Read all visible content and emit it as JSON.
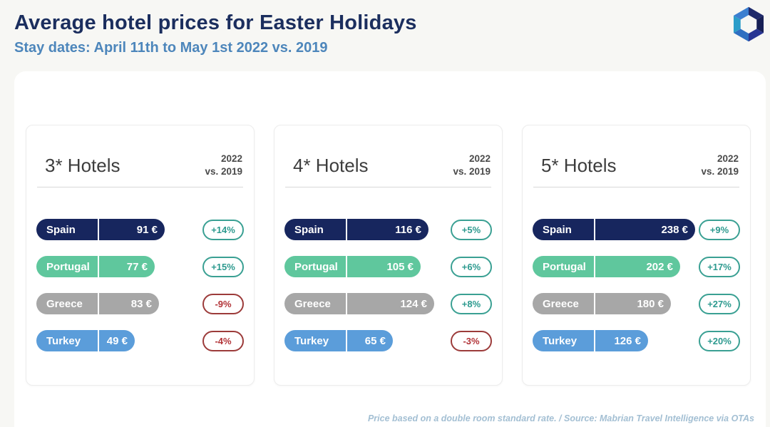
{
  "header": {
    "title": "Average hotel prices for Easter Holidays",
    "subtitle": "Stay dates: April 11th to May 1st 2022 vs. 2019"
  },
  "comparison": {
    "line1": "2022",
    "line2": "vs. 2019"
  },
  "panels": [
    {
      "title": "3* Hotels",
      "rows": [
        {
          "country": "Spain",
          "price": 91,
          "price_label": "91 €",
          "change_label": "+14%",
          "trend": "positive",
          "color_key": "spain"
        },
        {
          "country": "Portugal",
          "price": 77,
          "price_label": "77 €",
          "change_label": "+15%",
          "trend": "positive",
          "color_key": "portugal"
        },
        {
          "country": "Greece",
          "price": 83,
          "price_label": "83 €",
          "change_label": "-9%",
          "trend": "negative",
          "color_key": "greece"
        },
        {
          "country": "Turkey",
          "price": 49,
          "price_label": "49 €",
          "change_label": "-4%",
          "trend": "negative",
          "color_key": "turkey"
        }
      ]
    },
    {
      "title": "4* Hotels",
      "rows": [
        {
          "country": "Spain",
          "price": 116,
          "price_label": "116 €",
          "change_label": "+5%",
          "trend": "positive",
          "color_key": "spain"
        },
        {
          "country": "Portugal",
          "price": 105,
          "price_label": "105 €",
          "change_label": "+6%",
          "trend": "positive",
          "color_key": "portugal"
        },
        {
          "country": "Greece",
          "price": 124,
          "price_label": "124 €",
          "change_label": "+8%",
          "trend": "positive",
          "color_key": "greece"
        },
        {
          "country": "Turkey",
          "price": 65,
          "price_label": "65 €",
          "change_label": "-3%",
          "trend": "negative",
          "color_key": "turkey"
        }
      ]
    },
    {
      "title": "5* Hotels",
      "rows": [
        {
          "country": "Spain",
          "price": 238,
          "price_label": "238 €",
          "change_label": "+9%",
          "trend": "positive",
          "color_key": "spain"
        },
        {
          "country": "Portugal",
          "price": 202,
          "price_label": "202 €",
          "change_label": "+17%",
          "trend": "positive",
          "color_key": "portugal"
        },
        {
          "country": "Greece",
          "price": 180,
          "price_label": "180 €",
          "change_label": "+27%",
          "trend": "positive",
          "color_key": "greece"
        },
        {
          "country": "Turkey",
          "price": 126,
          "price_label": "126 €",
          "change_label": "+20%",
          "trend": "positive",
          "color_key": "turkey"
        }
      ]
    }
  ],
  "footer": {
    "note": "Price based on a double room standard rate. / Source: Mabrian Travel Intelligence via OTAs"
  },
  "colors": {
    "spain": "#17265e",
    "portugal": "#5fc79d",
    "greece": "#a7a7a7",
    "turkey": "#5b9dda",
    "positive_border": "#3aa093",
    "positive_text": "#2d9a8f",
    "negative_border": "#9c3b3a",
    "negative_text": "#b23438",
    "title_navy": "#1b2e5e",
    "subtitle_blue": "#4d86bb",
    "footer_blue_gray": "#a3bfd3"
  },
  "chart_data": [
    {
      "type": "bar",
      "title": "3* Hotels",
      "comparison_note": "2022 vs. 2019",
      "categories": [
        "Spain",
        "Portugal",
        "Greece",
        "Turkey"
      ],
      "values": [
        91,
        77,
        83,
        49
      ],
      "value_unit": "EUR",
      "data_labels": [
        "91 €",
        "77 €",
        "83 €",
        "49 €"
      ],
      "change_vs_2019_pct": [
        14,
        15,
        -9,
        -4
      ],
      "orientation": "horizontal",
      "grid": false,
      "legend": false
    },
    {
      "type": "bar",
      "title": "4* Hotels",
      "comparison_note": "2022 vs. 2019",
      "categories": [
        "Spain",
        "Portugal",
        "Greece",
        "Turkey"
      ],
      "values": [
        116,
        105,
        124,
        65
      ],
      "value_unit": "EUR",
      "data_labels": [
        "116 €",
        "105 €",
        "124 €",
        "65 €"
      ],
      "change_vs_2019_pct": [
        5,
        6,
        8,
        -3
      ],
      "orientation": "horizontal",
      "grid": false,
      "legend": false
    },
    {
      "type": "bar",
      "title": "5* Hotels",
      "comparison_note": "2022 vs. 2019",
      "categories": [
        "Spain",
        "Portugal",
        "Greece",
        "Turkey"
      ],
      "values": [
        238,
        202,
        180,
        126
      ],
      "value_unit": "EUR",
      "data_labels": [
        "238 €",
        "202 €",
        "180 €",
        "126 €"
      ],
      "change_vs_2019_pct": [
        9,
        17,
        27,
        20
      ],
      "orientation": "horizontal",
      "grid": false,
      "legend": false
    }
  ]
}
